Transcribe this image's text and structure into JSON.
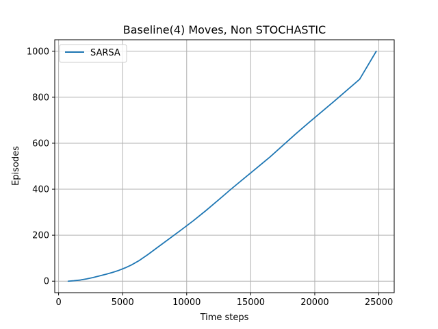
{
  "chart_data": {
    "type": "line",
    "title": "Baseline(4) Moves, Non STOCHASTIC",
    "xlabel": "Time steps",
    "ylabel": "Episodes",
    "xlim": [
      -300,
      26200
    ],
    "ylim": [
      -50,
      1050
    ],
    "xticks": [
      0,
      5000,
      10000,
      15000,
      20000,
      25000
    ],
    "yticks": [
      0,
      200,
      400,
      600,
      800,
      1000
    ],
    "grid": true,
    "legend_position": "upper left",
    "series": [
      {
        "name": "SARSA",
        "color": "#1f77b4",
        "x": [
          750,
          1200,
          1700,
          2200,
          2700,
          3200,
          3700,
          4200,
          4700,
          5200,
          5700,
          6300,
          7000,
          7800,
          8600,
          9500,
          10500,
          11500,
          12500,
          13500,
          14500,
          15500,
          16500,
          17500,
          18500,
          19500,
          20500,
          21500,
          22500,
          23500,
          24800
        ],
        "y": [
          0,
          2,
          5,
          10,
          16,
          23,
          30,
          38,
          47,
          58,
          71,
          90,
          117,
          150,
          183,
          220,
          262,
          307,
          354,
          402,
          448,
          494,
          540,
          590,
          640,
          688,
          735,
          782,
          830,
          878,
          1000
        ]
      }
    ]
  }
}
